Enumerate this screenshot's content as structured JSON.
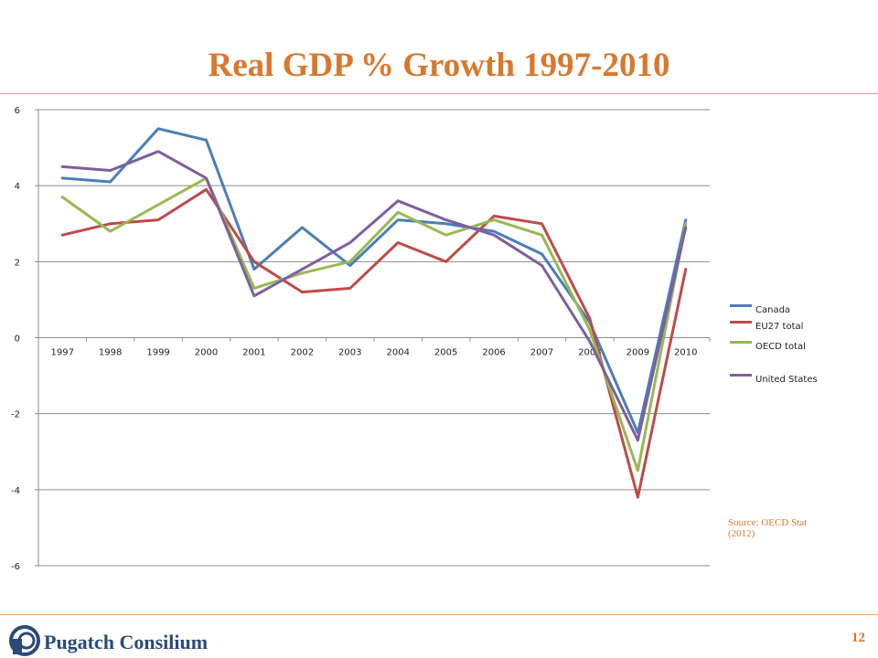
{
  "slide": {
    "title": "Real GDP % Growth 1997-2010",
    "source": "Source: OECD Stat (2012)",
    "page_number": "12",
    "logo_text": "Pugatch Consilium",
    "accent_color": "#d9782d"
  },
  "chart_data": {
    "type": "line",
    "title": "",
    "xlabel": "",
    "ylabel": "",
    "x": [
      "1997",
      "1998",
      "1999",
      "2000",
      "2001",
      "2002",
      "2003",
      "2004",
      "2005",
      "2006",
      "2007",
      "2008",
      "2009",
      "2010"
    ],
    "ylim": [
      -6,
      6
    ],
    "yticks": [
      -6,
      -4,
      -2,
      0,
      2,
      4,
      6
    ],
    "grid": true,
    "legend_position": "right",
    "series": [
      {
        "name": "Canada",
        "color": "#4a7ebb",
        "values": [
          4.2,
          4.1,
          5.5,
          5.2,
          1.8,
          2.9,
          1.9,
          3.1,
          3.0,
          2.8,
          2.2,
          0.4,
          -2.5,
          3.1
        ]
      },
      {
        "name": "EU27 total",
        "color": "#be4b48",
        "values": [
          2.7,
          3.0,
          3.1,
          3.9,
          2.0,
          1.2,
          1.3,
          2.5,
          2.0,
          3.2,
          3.0,
          0.5,
          -4.2,
          1.8
        ]
      },
      {
        "name": "OECD total",
        "color": "#98b954",
        "values": [
          3.7,
          2.8,
          3.5,
          4.2,
          1.3,
          1.7,
          2.0,
          3.3,
          2.7,
          3.1,
          2.7,
          0.2,
          -3.5,
          3.0
        ]
      },
      {
        "name": "United States",
        "color": "#7d5fa0",
        "values": [
          4.5,
          4.4,
          4.9,
          4.2,
          1.1,
          1.8,
          2.5,
          3.6,
          3.1,
          2.7,
          1.9,
          -0.1,
          -2.7,
          2.9
        ]
      }
    ]
  }
}
